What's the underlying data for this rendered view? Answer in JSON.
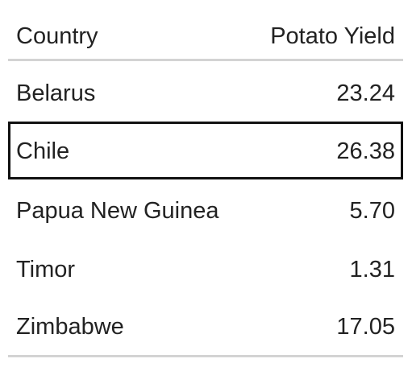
{
  "table": {
    "headers": {
      "country": "Country",
      "value": "Potato Yield"
    },
    "rows": [
      {
        "country": "Belarus",
        "value": "23.24"
      },
      {
        "country": "Chile",
        "value": "26.38"
      },
      {
        "country": "Papua New Guinea",
        "value": "5.70"
      },
      {
        "country": "Timor",
        "value": "1.31"
      },
      {
        "country": "Zimbabwe",
        "value": "17.05"
      }
    ],
    "highlighted_row": "Chile"
  }
}
